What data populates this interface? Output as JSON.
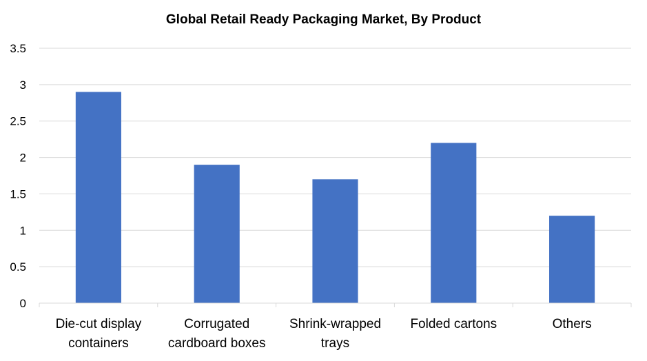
{
  "chart_data": {
    "type": "bar",
    "title": "Global Retail Ready Packaging Market, By Product",
    "categories": [
      [
        "Die-cut display",
        "containers"
      ],
      [
        "Corrugated",
        "cardboard boxes"
      ],
      [
        "Shrink-wrapped",
        "trays"
      ],
      [
        "Folded cartons"
      ],
      [
        "Others"
      ]
    ],
    "values": [
      2.9,
      1.9,
      1.7,
      2.2,
      1.2
    ],
    "ylim": [
      0,
      3.5
    ],
    "yticks": [
      "0",
      "0.5",
      "1",
      "1.5",
      "2",
      "2.5",
      "3",
      "3.5"
    ],
    "grid": true,
    "colors": {
      "bar": "#4472c4",
      "grid": "#d9d9d9",
      "axis": "#d9d9d9"
    }
  }
}
